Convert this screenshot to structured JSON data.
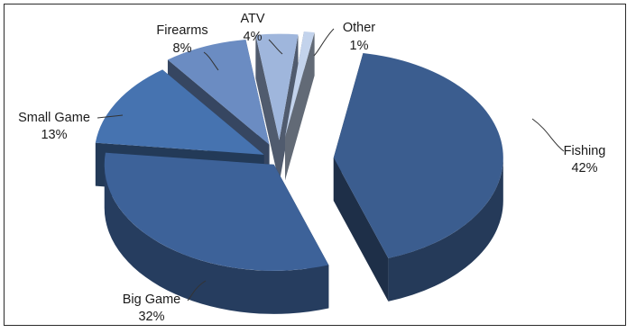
{
  "chart_data": {
    "type": "pie",
    "style": "exploded-3d",
    "title": "",
    "legend": "none",
    "slices": [
      {
        "label": "Fishing",
        "percent": 42,
        "value_label": "42%",
        "color": "#3b5d8f"
      },
      {
        "label": "Big Game",
        "percent": 32,
        "value_label": "32%",
        "color": "#3d6299"
      },
      {
        "label": "Small Game",
        "percent": 13,
        "value_label": "13%",
        "color": "#4673b0"
      },
      {
        "label": "Firearms",
        "percent": 8,
        "value_label": "8%",
        "color": "#6b8cc2"
      },
      {
        "label": "ATV",
        "percent": 4,
        "value_label": "4%",
        "color": "#9fb6dc"
      },
      {
        "label": "Other",
        "percent": 1,
        "value_label": "1%",
        "color": "#c3d3ec"
      }
    ]
  }
}
